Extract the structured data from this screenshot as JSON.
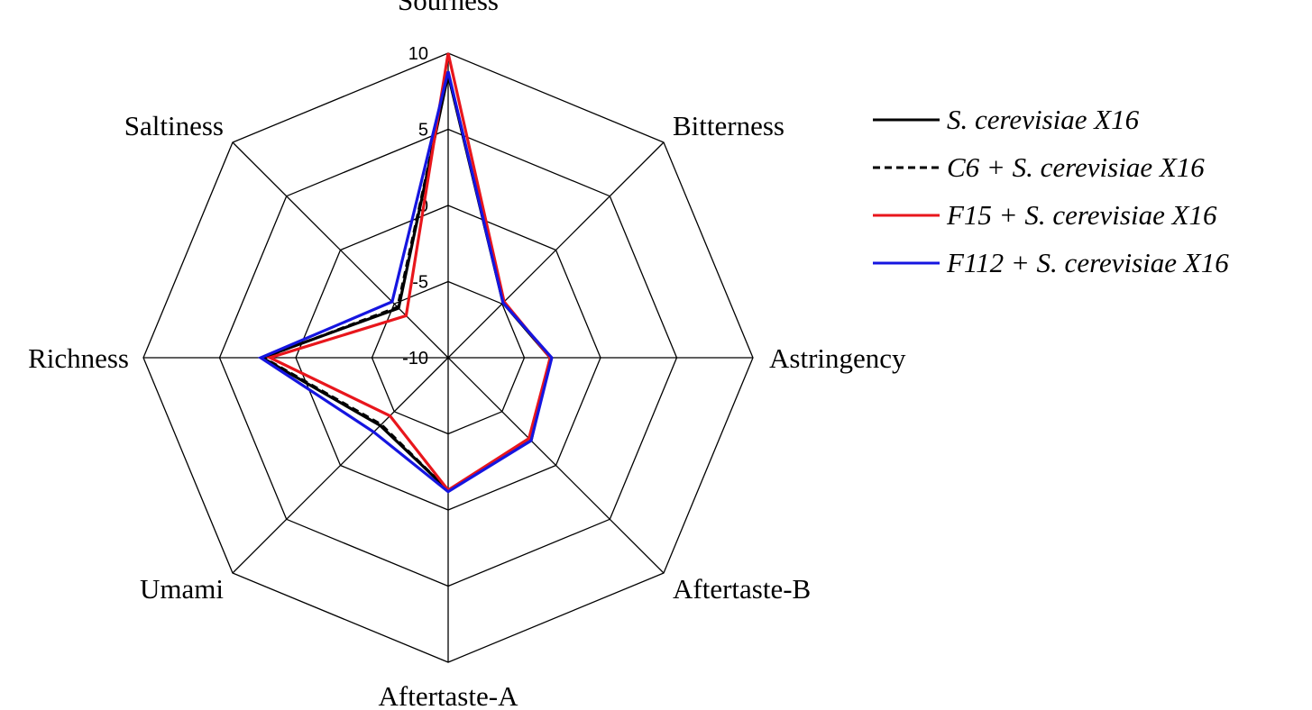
{
  "chart_data": {
    "type": "radar",
    "axes": [
      "Sourness",
      "Bitterness",
      "Astringency",
      "Aftertaste-B",
      "Aftertaste-A",
      "Umami",
      "Richness",
      "Saltiness"
    ],
    "r_range": [
      -10,
      10
    ],
    "r_ticks": [
      -10,
      -5,
      0,
      5,
      10
    ],
    "r_tick_labels": [
      "-10",
      "-5",
      "0",
      "5",
      "10"
    ],
    "grid": true,
    "legend_position": "right",
    "series": [
      {
        "name": "S. cerevisiae X16",
        "color": "#000000",
        "dash": "solid",
        "values": [
          8.6,
          -4.9,
          -3.3,
          -2.3,
          -1.3,
          -3.7,
          2.2,
          -5.4
        ]
      },
      {
        "name": "C6 + S. cerevisiae X16",
        "color": "#000000",
        "dash": "dashed",
        "values": [
          8.6,
          -4.9,
          -3.2,
          -2.4,
          -1.3,
          -3.8,
          2.1,
          -5.3
        ]
      },
      {
        "name": "F15 + S. cerevisiae X16",
        "color": "#e8161c",
        "dash": "solid",
        "values": [
          10.0,
          -4.8,
          -3.3,
          -2.5,
          -1.3,
          -4.6,
          1.7,
          -6.1
        ]
      },
      {
        "name": "F112 + S. cerevisiae X16",
        "color": "#1515e0",
        "dash": "solid",
        "values": [
          8.8,
          -4.9,
          -3.2,
          -2.3,
          -1.2,
          -3.1,
          2.3,
          -4.8
        ]
      }
    ]
  }
}
